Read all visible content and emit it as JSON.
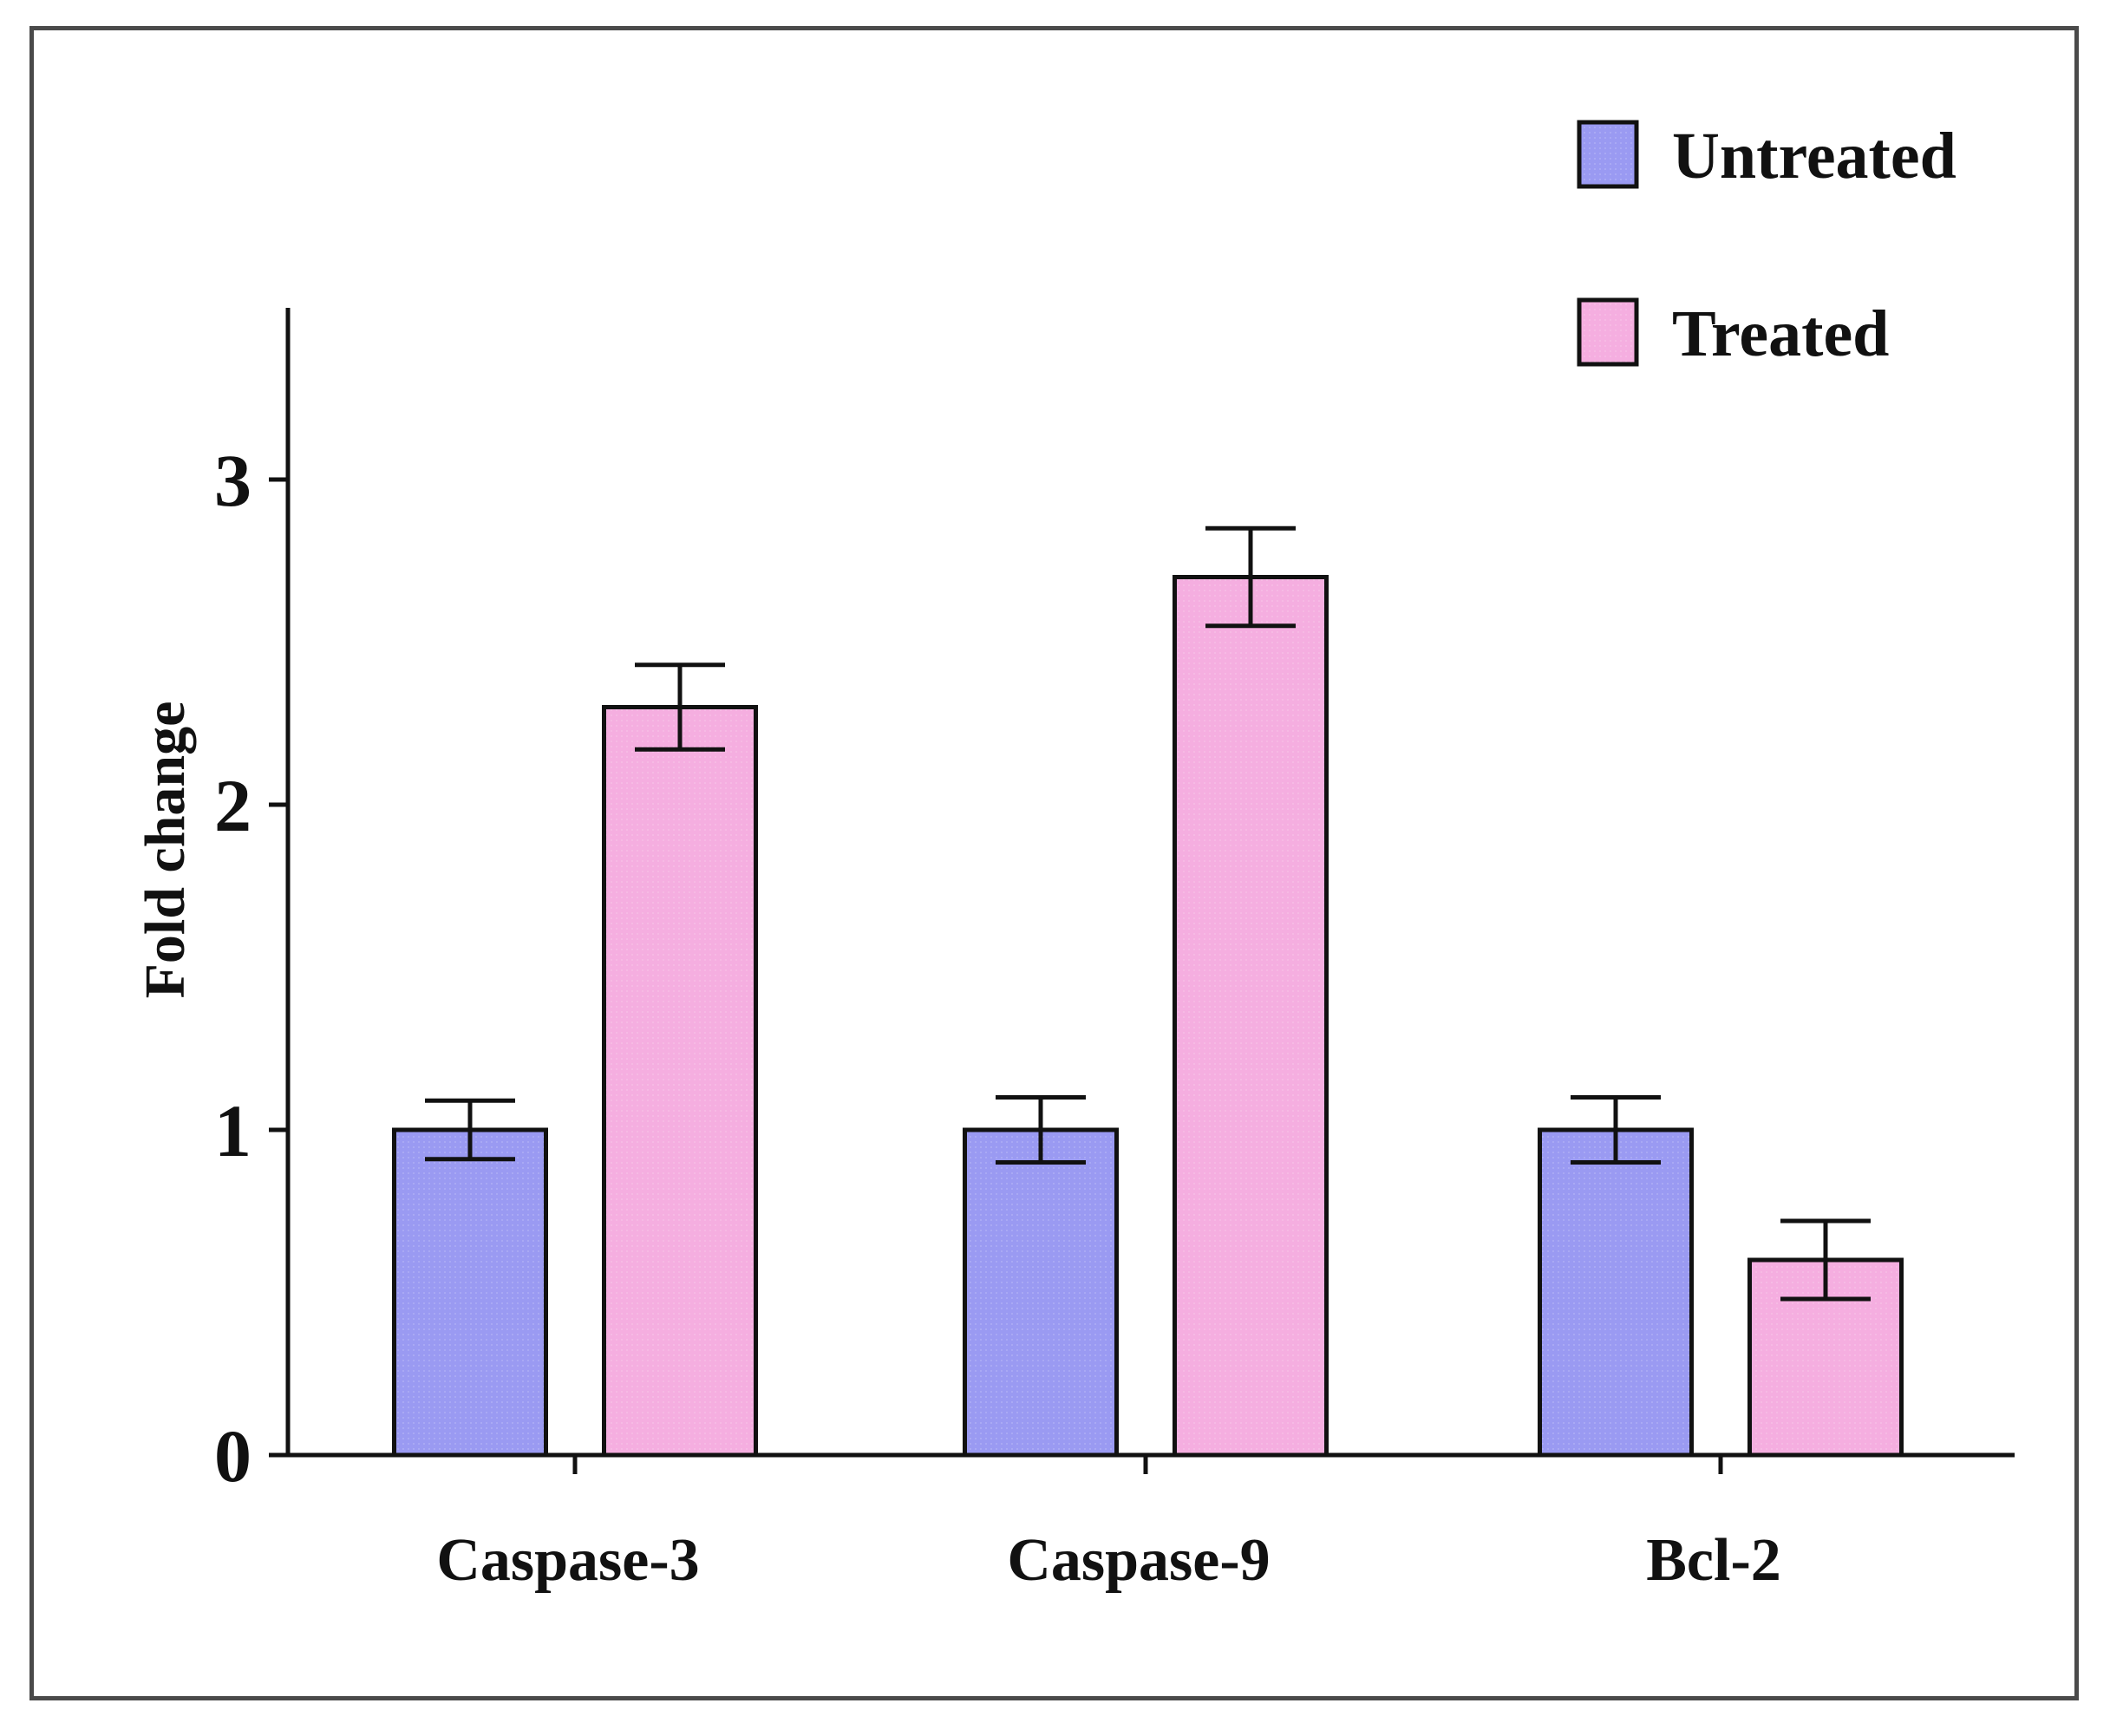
{
  "chart_data": {
    "type": "bar",
    "title": "",
    "xlabel": "",
    "ylabel": "Fold change",
    "ylim": [
      0,
      3.5
    ],
    "yticks": [
      0,
      1,
      2,
      3
    ],
    "grid": false,
    "legend_position": "top-right",
    "categories": [
      "Caspase-3",
      "Caspase-9",
      "Bcl-2"
    ],
    "series": [
      {
        "name": "Untreated",
        "color": "#9a9af2",
        "values": [
          1.0,
          1.0,
          1.0
        ],
        "errors": [
          0.09,
          0.1,
          0.1
        ]
      },
      {
        "name": "Treated",
        "color": "#f5aee0",
        "values": [
          2.3,
          2.7,
          0.6
        ],
        "errors": [
          0.13,
          0.15,
          0.12
        ]
      }
    ]
  }
}
